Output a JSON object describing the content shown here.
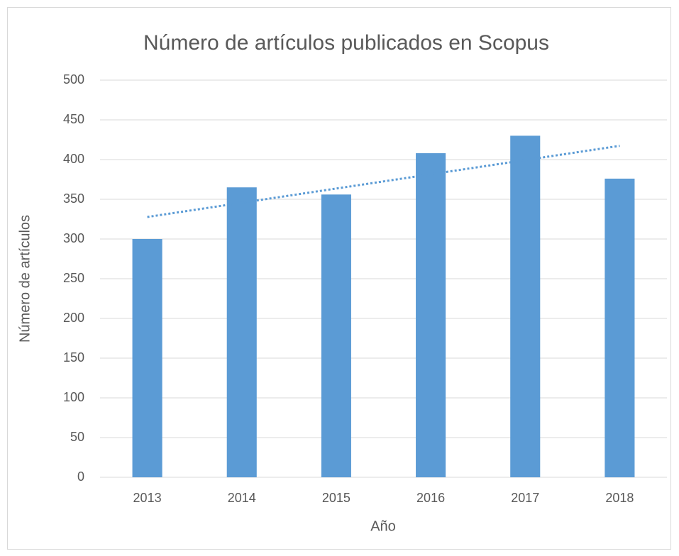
{
  "chart_data": {
    "type": "bar",
    "title": "Número de artículos publicados en Scopus",
    "x_label": "Año",
    "y_label": "Número de artículos",
    "categories": [
      "2013",
      "2014",
      "2015",
      "2016",
      "2017",
      "2018"
    ],
    "values": [
      300,
      365,
      356,
      408,
      430,
      376
    ],
    "color": "#5b9bd5",
    "ylim": [
      0,
      500
    ],
    "yticks": [
      0,
      50,
      100,
      150,
      200,
      250,
      300,
      350,
      400,
      450,
      500
    ],
    "grid": true,
    "trendline": "linear"
  }
}
